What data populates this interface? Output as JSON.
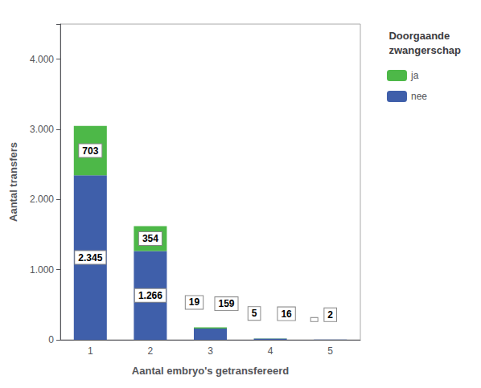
{
  "chart_data": {
    "type": "bar",
    "stacked": true,
    "xlabel": "Aantal embryo's getransfereerd",
    "ylabel": "Aantal transfers",
    "categories": [
      "1",
      "2",
      "3",
      "4",
      "5"
    ],
    "series": [
      {
        "name": "nee",
        "color": "#3f5faa",
        "values": [
          2345,
          1266,
          159,
          16,
          2
        ],
        "value_labels": [
          "2.345",
          "1.266",
          "159",
          "16",
          "2"
        ]
      },
      {
        "name": "ja",
        "color": "#4db848",
        "values": [
          703,
          354,
          19,
          5,
          0
        ],
        "value_labels": [
          "703",
          "354",
          "19",
          "5",
          null
        ]
      }
    ],
    "ylim": [
      0,
      4500
    ],
    "yticks": [
      0,
      {
        "value": 1000,
        "label": "1.000"
      },
      {
        "value": 2000,
        "label": "2.000"
      },
      {
        "value": 3000,
        "label": "3.000"
      },
      {
        "value": 4000,
        "label": "4.000"
      }
    ],
    "grid": false,
    "data_labels": true,
    "legend": "right",
    "legend_title": "Doorgaande\nzwangerschap"
  }
}
